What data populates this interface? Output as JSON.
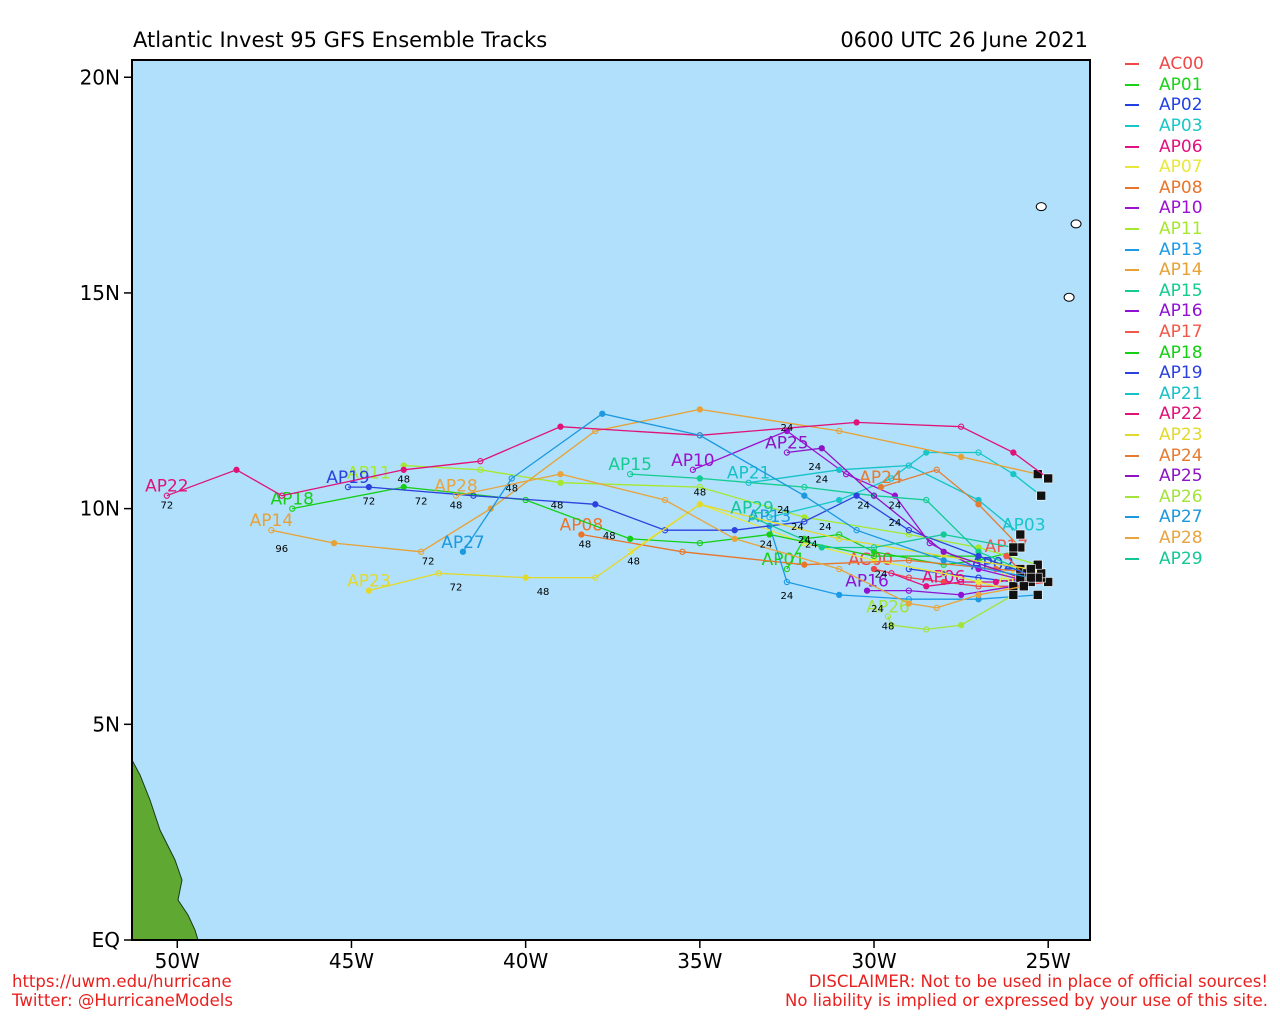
{
  "title": "Atlantic Invest 95 GFS Ensemble Tracks",
  "timestamp": "0600 UTC 26 June 2021",
  "footer": {
    "url": "https://uwm.edu/hurricane",
    "twitter": "Twitter: @HurricaneModels",
    "disclaimer1": "DISCLAIMER: Not to be used in place of official sources!",
    "disclaimer2": "No liability is implied or expressed by your use of this site."
  },
  "map": {
    "ocean_color": "#b0e0fb",
    "land_color": "#5fa832",
    "lon_range": [
      -51.3,
      -23.8
    ],
    "lat_range": [
      0,
      20.4
    ],
    "x_ticks": [
      {
        "lon": -50,
        "label": "50W"
      },
      {
        "lon": -45,
        "label": "45W"
      },
      {
        "lon": -40,
        "label": "40W"
      },
      {
        "lon": -35,
        "label": "35W"
      },
      {
        "lon": -30,
        "label": "30W"
      },
      {
        "lon": -25,
        "label": "25W"
      }
    ],
    "y_ticks": [
      {
        "lat": 0,
        "label": "EQ"
      },
      {
        "lat": 5,
        "label": "5N"
      },
      {
        "lat": 10,
        "label": "10N"
      },
      {
        "lat": 15,
        "label": "15N"
      },
      {
        "lat": 20,
        "label": "20N"
      }
    ]
  },
  "tracks": [
    {
      "name": "AC00",
      "color": "#f04848",
      "label_at": [
        -30.1,
        8.6
      ],
      "points": [
        [
          -25.0,
          8.3
        ],
        [
          -26.0,
          8.2
        ],
        [
          -27.0,
          8.2
        ],
        [
          -28.0,
          8.3
        ],
        [
          -29.0,
          8.4
        ],
        [
          -30.0,
          8.6
        ]
      ]
    },
    {
      "name": "AP01",
      "color": "#19d219",
      "label_at": [
        -32.6,
        8.6
      ],
      "points": [
        [
          -26.0,
          9.0
        ],
        [
          -27.0,
          8.8
        ],
        [
          -28.0,
          8.7
        ],
        [
          -30.0,
          9.0
        ],
        [
          -31.0,
          9.4
        ],
        [
          -32.0,
          9.3
        ],
        [
          -32.5,
          8.6
        ]
      ]
    },
    {
      "name": "AP02",
      "color": "#2141e5",
      "label_at": [
        -26.6,
        8.5
      ],
      "points": [
        [
          -25.2,
          8.4
        ],
        [
          -26.0,
          8.3
        ],
        [
          -27.0,
          8.4
        ],
        [
          -28.0,
          8.5
        ],
        [
          -29.0,
          8.6
        ]
      ]
    },
    {
      "name": "AP03",
      "color": "#17c7c7",
      "label_at": [
        -25.7,
        9.4
      ],
      "points": [
        [
          -25.2,
          10.3
        ],
        [
          -26.0,
          10.8
        ],
        [
          -27.0,
          11.3
        ],
        [
          -28.5,
          11.3
        ],
        [
          -29.5,
          10.7
        ],
        [
          -31.0,
          10.2
        ],
        [
          -33.0,
          9.8
        ]
      ]
    },
    {
      "name": "AP06",
      "color": "#e3107f",
      "label_at": [
        -28.0,
        8.2
      ],
      "points": [
        [
          -25.5,
          8.4
        ],
        [
          -26.5,
          8.3
        ],
        [
          -27.5,
          8.3
        ],
        [
          -28.5,
          8.2
        ],
        [
          -29.5,
          8.5
        ]
      ]
    },
    {
      "name": "AP07",
      "color": "#e8e83a",
      "label_at": [
        -25.8,
        8.2
      ],
      "points": [
        [
          -26.0,
          8.1
        ],
        [
          -27.0,
          8.3
        ],
        [
          -28.0,
          8.5
        ],
        [
          -30.0,
          8.8
        ],
        [
          -32.0,
          9.2
        ],
        [
          -35.0,
          10.1
        ],
        [
          -37.0,
          9.0
        ]
      ]
    },
    {
      "name": "AP08",
      "color": "#e8752a",
      "label_at": [
        -38.4,
        9.4
      ],
      "points": [
        [
          -25.2,
          8.5
        ],
        [
          -26.5,
          8.6
        ],
        [
          -29.0,
          8.8
        ],
        [
          -32.0,
          8.7
        ],
        [
          -35.5,
          9.0
        ],
        [
          -38.4,
          9.4
        ]
      ]
    },
    {
      "name": "AP10",
      "color": "#9c11d0",
      "label_at": [
        -35.2,
        10.9
      ],
      "points": [
        [
          -25.5,
          8.3
        ],
        [
          -27.0,
          8.6
        ],
        [
          -28.4,
          9.2
        ],
        [
          -29.4,
          10.3
        ],
        [
          -30.8,
          10.8
        ],
        [
          -32.5,
          11.8
        ],
        [
          -35.2,
          10.9
        ]
      ]
    },
    {
      "name": "AP11",
      "color": "#a6e82d",
      "label_at": [
        -44.5,
        10.6
      ],
      "points": [
        [
          -25.3,
          8.7
        ],
        [
          -27.0,
          9.1
        ],
        [
          -29.0,
          9.4
        ],
        [
          -32.0,
          9.8
        ],
        [
          -35.0,
          10.5
        ],
        [
          -39.0,
          10.6
        ],
        [
          -41.3,
          10.9
        ],
        [
          -43.5,
          11.0
        ]
      ]
    },
    {
      "name": "AP13",
      "color": "#1d9ae5",
      "label_at": [
        -33.0,
        9.6
      ],
      "points": [
        [
          -25.3,
          8.0
        ],
        [
          -27.0,
          7.9
        ],
        [
          -29.0,
          7.9
        ],
        [
          -31.0,
          8.0
        ],
        [
          -32.5,
          8.3
        ],
        [
          -33.0,
          9.6
        ]
      ]
    },
    {
      "name": "AP14",
      "color": "#e8a135",
      "label_at": [
        -47.3,
        9.5
      ],
      "points": [
        [
          -25.3,
          10.8
        ],
        [
          -27.5,
          11.2
        ],
        [
          -31.0,
          11.8
        ],
        [
          -35.0,
          12.3
        ],
        [
          -38.0,
          11.8
        ],
        [
          -41.0,
          10.0
        ],
        [
          -43.0,
          9.0
        ],
        [
          -45.5,
          9.2
        ],
        [
          -47.3,
          9.5
        ]
      ]
    },
    {
      "name": "AP15",
      "color": "#13cc90",
      "label_at": [
        -37.0,
        10.8
      ],
      "points": [
        [
          -25.8,
          8.6
        ],
        [
          -27.0,
          9.0
        ],
        [
          -28.5,
          10.2
        ],
        [
          -30.0,
          10.3
        ],
        [
          -32.0,
          10.5
        ],
        [
          -35.0,
          10.7
        ],
        [
          -37.0,
          10.8
        ]
      ]
    },
    {
      "name": "AP16",
      "color": "#8f12d4",
      "label_at": [
        -30.2,
        8.1
      ],
      "points": [
        [
          -26.0,
          8.2
        ],
        [
          -27.5,
          8.0
        ],
        [
          -29.0,
          8.1
        ],
        [
          -30.2,
          8.1
        ]
      ]
    },
    {
      "name": "AP17",
      "color": "#f0584a",
      "label_at": [
        -26.2,
        8.9
      ],
      "points": [
        [
          -25.5,
          8.3
        ],
        [
          -26.2,
          8.9
        ]
      ]
    },
    {
      "name": "AP18",
      "color": "#15cf15",
      "label_at": [
        -46.7,
        10.0
      ],
      "points": [
        [
          -25.6,
          8.5
        ],
        [
          -27.0,
          8.9
        ],
        [
          -30.0,
          8.9
        ],
        [
          -33.0,
          9.4
        ],
        [
          -35.0,
          9.2
        ],
        [
          -37.0,
          9.3
        ],
        [
          -40.0,
          10.2
        ],
        [
          -43.5,
          10.5
        ],
        [
          -46.7,
          10.0
        ]
      ]
    },
    {
      "name": "AP19",
      "color": "#2c41de",
      "label_at": [
        -45.1,
        10.5
      ],
      "points": [
        [
          -25.3,
          8.4
        ],
        [
          -27.0,
          8.9
        ],
        [
          -29.0,
          9.5
        ],
        [
          -30.5,
          10.3
        ],
        [
          -32.0,
          9.7
        ],
        [
          -34.0,
          9.5
        ],
        [
          -36.0,
          9.5
        ],
        [
          -38.0,
          10.1
        ],
        [
          -41.5,
          10.3
        ],
        [
          -44.5,
          10.5
        ],
        [
          -45.1,
          10.5
        ]
      ]
    },
    {
      "name": "AP21",
      "color": "#16c2c8",
      "label_at": [
        -33.6,
        10.6
      ],
      "points": [
        [
          -25.8,
          9.4
        ],
        [
          -27.0,
          10.2
        ],
        [
          -29.0,
          11.0
        ],
        [
          -31.0,
          10.9
        ],
        [
          -33.6,
          10.6
        ]
      ]
    },
    {
      "name": "AP22",
      "color": "#e01278",
      "label_at": [
        -50.3,
        10.3
      ],
      "points": [
        [
          -25.0,
          10.7
        ],
        [
          -26.0,
          11.3
        ],
        [
          -27.5,
          11.9
        ],
        [
          -30.5,
          12.0
        ],
        [
          -35.0,
          11.7
        ],
        [
          -39.0,
          11.9
        ],
        [
          -41.3,
          11.1
        ],
        [
          -43.5,
          10.9
        ],
        [
          -47.0,
          10.3
        ],
        [
          -48.3,
          10.9
        ],
        [
          -50.3,
          10.3
        ]
      ]
    },
    {
      "name": "AP23",
      "color": "#e2d92d",
      "label_at": [
        -44.5,
        8.1
      ],
      "points": [
        [
          -25.5,
          8.6
        ],
        [
          -28.0,
          8.9
        ],
        [
          -31.0,
          9.3
        ],
        [
          -35.0,
          10.1
        ],
        [
          -38.0,
          8.4
        ],
        [
          -40.0,
          8.4
        ],
        [
          -42.5,
          8.5
        ],
        [
          -44.5,
          8.1
        ]
      ]
    },
    {
      "name": "AP24",
      "color": "#e57b30",
      "label_at": [
        -29.8,
        10.5
      ],
      "points": [
        [
          -25.8,
          9.1
        ],
        [
          -27.0,
          10.1
        ],
        [
          -28.2,
          10.9
        ],
        [
          -29.8,
          10.5
        ]
      ]
    },
    {
      "name": "AP25",
      "color": "#8e13c4",
      "label_at": [
        -32.5,
        11.3
      ],
      "points": [
        [
          -25.8,
          8.4
        ],
        [
          -28.0,
          9.0
        ],
        [
          -30.0,
          10.3
        ],
        [
          -31.5,
          11.4
        ],
        [
          -32.5,
          11.3
        ]
      ]
    },
    {
      "name": "AP26",
      "color": "#a4e33a",
      "label_at": [
        -29.6,
        7.5
      ],
      "points": [
        [
          -26.0,
          8.0
        ],
        [
          -27.5,
          7.3
        ],
        [
          -28.5,
          7.2
        ],
        [
          -29.5,
          7.3
        ],
        [
          -29.6,
          7.5
        ]
      ]
    },
    {
      "name": "AP27",
      "color": "#1c98de",
      "label_at": [
        -41.8,
        9.0
      ],
      "points": [
        [
          -25.5,
          8.4
        ],
        [
          -28.0,
          8.8
        ],
        [
          -30.5,
          9.5
        ],
        [
          -32.0,
          10.3
        ],
        [
          -35.0,
          11.7
        ],
        [
          -37.8,
          12.2
        ],
        [
          -40.4,
          10.7
        ],
        [
          -41.8,
          9.0
        ]
      ]
    },
    {
      "name": "AP28",
      "color": "#e8a43e",
      "label_at": [
        -42.0,
        10.3
      ],
      "points": [
        [
          -25.7,
          8.2
        ],
        [
          -27.0,
          8.0
        ],
        [
          -28.2,
          7.7
        ],
        [
          -29.0,
          7.8
        ],
        [
          -31.0,
          8.6
        ],
        [
          -34.0,
          9.3
        ],
        [
          -36.0,
          10.2
        ],
        [
          -39.0,
          10.8
        ],
        [
          -42.0,
          10.3
        ]
      ]
    },
    {
      "name": "AP29",
      "color": "#13c895",
      "label_at": [
        -33.5,
        9.8
      ],
      "points": [
        [
          -26.0,
          9.1
        ],
        [
          -28.0,
          9.4
        ],
        [
          -30.0,
          9.1
        ],
        [
          -31.5,
          9.1
        ],
        [
          -33.5,
          9.8
        ]
      ]
    }
  ],
  "hour_labels": [
    {
      "text": "72",
      "at": [
        -50.3,
        10.0
      ]
    },
    {
      "text": "96",
      "at": [
        -47.0,
        9.0
      ]
    },
    {
      "text": "72",
      "at": [
        -44.5,
        10.1
      ]
    },
    {
      "text": "48",
      "at": [
        -43.5,
        10.6
      ]
    },
    {
      "text": "72",
      "at": [
        -43.0,
        10.1
      ]
    },
    {
      "text": "48",
      "at": [
        -42.0,
        10.0
      ]
    },
    {
      "text": "48",
      "at": [
        -40.4,
        10.4
      ]
    },
    {
      "text": "48",
      "at": [
        -39.1,
        10.0
      ]
    },
    {
      "text": "72",
      "at": [
        -42.0,
        8.1
      ]
    },
    {
      "text": "72",
      "at": [
        -42.8,
        8.7
      ]
    },
    {
      "text": "48",
      "at": [
        -38.3,
        9.1
      ]
    },
    {
      "text": "48",
      "at": [
        -37.6,
        9.3
      ]
    },
    {
      "text": "48",
      "at": [
        -36.9,
        8.7
      ]
    },
    {
      "text": "48",
      "at": [
        -39.5,
        8.0
      ]
    },
    {
      "text": "48",
      "at": [
        -35.0,
        10.3
      ]
    },
    {
      "text": "24",
      "at": [
        -33.1,
        9.1
      ]
    },
    {
      "text": "24",
      "at": [
        -32.6,
        9.9
      ]
    },
    {
      "text": "24",
      "at": [
        -32.2,
        9.5
      ]
    },
    {
      "text": "24",
      "at": [
        -31.8,
        9.1
      ]
    },
    {
      "text": "24",
      "at": [
        -32.0,
        9.2
      ]
    },
    {
      "text": "24",
      "at": [
        -32.5,
        7.9
      ]
    },
    {
      "text": "24",
      "at": [
        -31.5,
        10.6
      ]
    },
    {
      "text": "24",
      "at": [
        -31.7,
        10.9
      ]
    },
    {
      "text": "24",
      "at": [
        -31.4,
        9.5
      ]
    },
    {
      "text": "24",
      "at": [
        -30.3,
        10.0
      ]
    },
    {
      "text": "24",
      "at": [
        -29.4,
        10.0
      ]
    },
    {
      "text": "24",
      "at": [
        -29.4,
        9.6
      ]
    },
    {
      "text": "24",
      "at": [
        -29.8,
        8.4
      ]
    },
    {
      "text": "24",
      "at": [
        -29.9,
        7.6
      ]
    },
    {
      "text": "48",
      "at": [
        -29.6,
        7.2
      ]
    },
    {
      "text": "24",
      "at": [
        -32.5,
        11.8
      ]
    }
  ],
  "islands": [
    {
      "name": "cape-verde-north",
      "at": [
        -25.2,
        17.0
      ]
    },
    {
      "name": "cape-verde-east",
      "at": [
        -24.2,
        16.6
      ]
    },
    {
      "name": "cape-verde-south",
      "at": [
        -24.4,
        14.9
      ]
    }
  ]
}
